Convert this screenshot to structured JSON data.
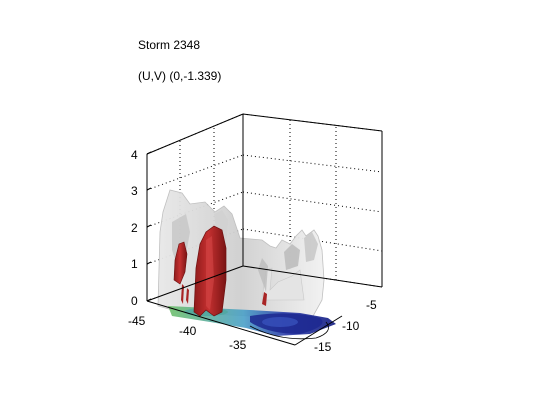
{
  "chart_data": {
    "type": "3d-isosurface",
    "title": "Storm 2348",
    "subtitle": "(U,V) (0,-1.339)",
    "z_ticks": [
      "0",
      "1",
      "2",
      "3",
      "4"
    ],
    "x_ticks": [
      "-45",
      "-40",
      "-35"
    ],
    "y_ticks": [
      "-5",
      "-10",
      "-15"
    ],
    "zlim": [
      0,
      4
    ],
    "grid": true,
    "colors": {
      "surface_outer": "#d6d6d6",
      "surface_inner": "#b22424",
      "floor_green": "#5fb86a",
      "floor_blue": "#1a2a9a",
      "floor_cyan": "#4fb0d0"
    }
  }
}
